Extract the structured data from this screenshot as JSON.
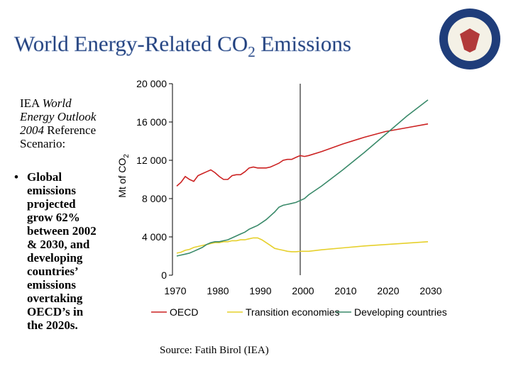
{
  "title": {
    "main": "World Energy-Related CO",
    "sub": "2",
    "rest": " Emissions"
  },
  "sidebar": {
    "intro": {
      "lead": "IEA ",
      "italic": "World Energy Outlook 2004",
      "tail": "Reference Scenario:"
    },
    "bullet": "Global emissions projected grow 62% between 2002 & 2030, and developing countries’ emissions overtaking OECD’s in the 2020s."
  },
  "source": "Source:  Fatih Birol (IEA)",
  "chart_data": {
    "type": "line",
    "ylabel": {
      "main": "Mt of CO",
      "sub": "2"
    },
    "x": [
      1971,
      1972,
      1973,
      1974,
      1975,
      1976,
      1977,
      1978,
      1979,
      1980,
      1981,
      1982,
      1983,
      1984,
      1985,
      1986,
      1987,
      1988,
      1989,
      1990,
      1991,
      1992,
      1993,
      1994,
      1995,
      1996,
      1997,
      1998,
      1999,
      2000,
      2001,
      2002,
      2005,
      2010,
      2015,
      2020,
      2025,
      2030
    ],
    "series": [
      {
        "name": "OECD",
        "color": "#cc2222",
        "values": [
          9300,
          9700,
          10300,
          10000,
          9800,
          10400,
          10600,
          10800,
          11000,
          10700,
          10300,
          10000,
          10000,
          10400,
          10500,
          10500,
          10800,
          11200,
          11300,
          11200,
          11200,
          11200,
          11300,
          11500,
          11700,
          12000,
          12100,
          12100,
          12300,
          12500,
          12400,
          12500,
          12900,
          13700,
          14400,
          15000,
          15400,
          15800
        ]
      },
      {
        "name": "Transition economies",
        "color": "#e6d02c",
        "values": [
          2300,
          2400,
          2600,
          2700,
          2900,
          3000,
          3100,
          3200,
          3300,
          3400,
          3400,
          3500,
          3500,
          3600,
          3600,
          3700,
          3700,
          3800,
          3900,
          3900,
          3700,
          3400,
          3100,
          2800,
          2700,
          2600,
          2500,
          2450,
          2450,
          2500,
          2500,
          2500,
          2650,
          2850,
          3050,
          3200,
          3350,
          3500
        ]
      },
      {
        "name": "Developing countries",
        "color": "#3a8a6a",
        "values": [
          2000,
          2100,
          2200,
          2300,
          2500,
          2700,
          2900,
          3200,
          3400,
          3500,
          3500,
          3600,
          3700,
          3900,
          4100,
          4300,
          4500,
          4800,
          5000,
          5200,
          5500,
          5800,
          6200,
          6600,
          7100,
          7300,
          7400,
          7500,
          7600,
          7800,
          8000,
          8400,
          9300,
          11000,
          12800,
          14700,
          16600,
          18300
        ]
      }
    ],
    "xlim": [
      1970,
      2030
    ],
    "xticks": [
      1970,
      1980,
      1990,
      2000,
      2010,
      2020,
      2030
    ],
    "ylim": [
      0,
      20000
    ],
    "yticks": [
      0,
      {
        "value": 4000,
        "label": "4 000"
      },
      {
        "value": 8000,
        "label": "8 000"
      },
      {
        "value": 12000,
        "label": "12 000"
      },
      {
        "value": 16000,
        "label": "16 000"
      },
      {
        "value": 20000,
        "label": "20 000"
      }
    ],
    "vline": 2000,
    "grid": false
  }
}
